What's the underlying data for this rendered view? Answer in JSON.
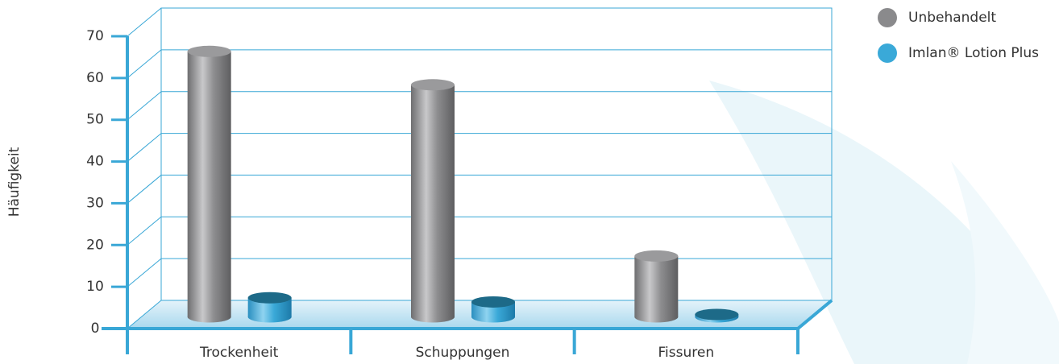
{
  "chart_data": {
    "type": "bar3d",
    "y_label": "Häufigkeit",
    "categories": [
      "Trockenheit",
      "Schuppungen",
      "Fissuren"
    ],
    "series": [
      {
        "name": "Unbehandelt",
        "color": "#8a8a8c",
        "values": [
          63,
          55,
          14
        ]
      },
      {
        "name": "Imlan® Lotion Plus",
        "color": "#3aa9d8",
        "values": [
          4,
          3,
          0
        ]
      }
    ],
    "ylim": [
      0,
      70
    ],
    "yticks": [
      0,
      10,
      20,
      30,
      40,
      50,
      60,
      70
    ],
    "grid": true,
    "legend": "top-right"
  }
}
